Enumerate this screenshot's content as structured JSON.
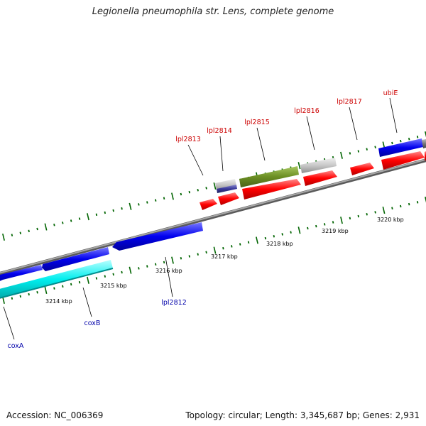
{
  "title": "Legionella pneumophila str. Lens, complete genome",
  "footer": {
    "accession": "Accession: NC_006369",
    "summary": "Topology: circular; Length: 3,345,687 bp; Genes: 2,931"
  },
  "scale": {
    "labels": [
      "3214 kbp",
      "3215 kbp",
      "3216 kbp",
      "3217 kbp",
      "3218 kbp",
      "3219 kbp",
      "3220 kbp"
    ]
  },
  "genes": {
    "top": [
      "lpl2813",
      "lpl2814",
      "lpl2815",
      "lpl2816",
      "lpl2817",
      "ubiE"
    ],
    "bottom": [
      "coxA",
      "coxB",
      "lpl2812"
    ]
  },
  "colors": {
    "backbone": "#888888",
    "forward_cds": "#ff0000",
    "reverse_cds": "#0000ee",
    "cyan_cds": "#00e5e5",
    "olive_cds": "#6b8e23",
    "grey_cds": "#c8c8c8",
    "tick": "#006400"
  }
}
